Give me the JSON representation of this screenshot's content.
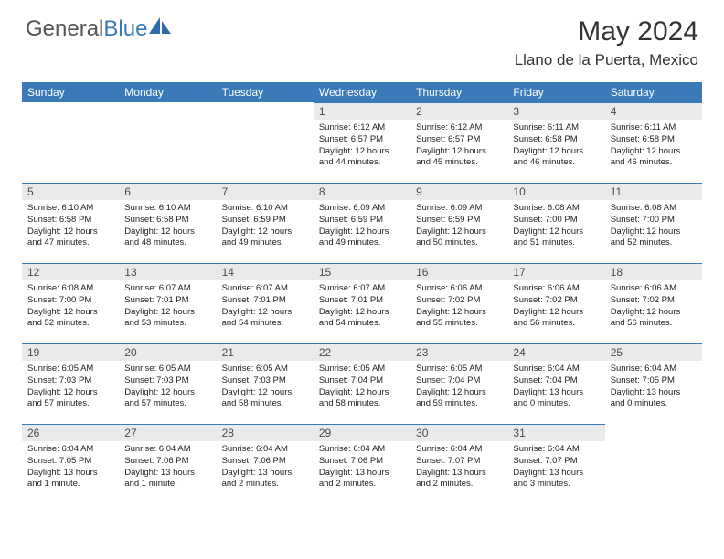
{
  "brand": {
    "part1": "General",
    "part2": "Blue"
  },
  "title": "May 2024",
  "location": "Llano de la Puerta, Mexico",
  "colors": {
    "header_bg": "#3a7ab8",
    "daynum_bg": "#e8eaec",
    "text": "#222222",
    "title_text": "#333333"
  },
  "weekdays": [
    "Sunday",
    "Monday",
    "Tuesday",
    "Wednesday",
    "Thursday",
    "Friday",
    "Saturday"
  ],
  "weeks": [
    [
      null,
      null,
      null,
      {
        "n": "1",
        "sr": "6:12 AM",
        "ss": "6:57 PM",
        "dl": "12 hours and 44 minutes."
      },
      {
        "n": "2",
        "sr": "6:12 AM",
        "ss": "6:57 PM",
        "dl": "12 hours and 45 minutes."
      },
      {
        "n": "3",
        "sr": "6:11 AM",
        "ss": "6:58 PM",
        "dl": "12 hours and 46 minutes."
      },
      {
        "n": "4",
        "sr": "6:11 AM",
        "ss": "6:58 PM",
        "dl": "12 hours and 46 minutes."
      }
    ],
    [
      {
        "n": "5",
        "sr": "6:10 AM",
        "ss": "6:58 PM",
        "dl": "12 hours and 47 minutes."
      },
      {
        "n": "6",
        "sr": "6:10 AM",
        "ss": "6:58 PM",
        "dl": "12 hours and 48 minutes."
      },
      {
        "n": "7",
        "sr": "6:10 AM",
        "ss": "6:59 PM",
        "dl": "12 hours and 49 minutes."
      },
      {
        "n": "8",
        "sr": "6:09 AM",
        "ss": "6:59 PM",
        "dl": "12 hours and 49 minutes."
      },
      {
        "n": "9",
        "sr": "6:09 AM",
        "ss": "6:59 PM",
        "dl": "12 hours and 50 minutes."
      },
      {
        "n": "10",
        "sr": "6:08 AM",
        "ss": "7:00 PM",
        "dl": "12 hours and 51 minutes."
      },
      {
        "n": "11",
        "sr": "6:08 AM",
        "ss": "7:00 PM",
        "dl": "12 hours and 52 minutes."
      }
    ],
    [
      {
        "n": "12",
        "sr": "6:08 AM",
        "ss": "7:00 PM",
        "dl": "12 hours and 52 minutes."
      },
      {
        "n": "13",
        "sr": "6:07 AM",
        "ss": "7:01 PM",
        "dl": "12 hours and 53 minutes."
      },
      {
        "n": "14",
        "sr": "6:07 AM",
        "ss": "7:01 PM",
        "dl": "12 hours and 54 minutes."
      },
      {
        "n": "15",
        "sr": "6:07 AM",
        "ss": "7:01 PM",
        "dl": "12 hours and 54 minutes."
      },
      {
        "n": "16",
        "sr": "6:06 AM",
        "ss": "7:02 PM",
        "dl": "12 hours and 55 minutes."
      },
      {
        "n": "17",
        "sr": "6:06 AM",
        "ss": "7:02 PM",
        "dl": "12 hours and 56 minutes."
      },
      {
        "n": "18",
        "sr": "6:06 AM",
        "ss": "7:02 PM",
        "dl": "12 hours and 56 minutes."
      }
    ],
    [
      {
        "n": "19",
        "sr": "6:05 AM",
        "ss": "7:03 PM",
        "dl": "12 hours and 57 minutes."
      },
      {
        "n": "20",
        "sr": "6:05 AM",
        "ss": "7:03 PM",
        "dl": "12 hours and 57 minutes."
      },
      {
        "n": "21",
        "sr": "6:05 AM",
        "ss": "7:03 PM",
        "dl": "12 hours and 58 minutes."
      },
      {
        "n": "22",
        "sr": "6:05 AM",
        "ss": "7:04 PM",
        "dl": "12 hours and 58 minutes."
      },
      {
        "n": "23",
        "sr": "6:05 AM",
        "ss": "7:04 PM",
        "dl": "12 hours and 59 minutes."
      },
      {
        "n": "24",
        "sr": "6:04 AM",
        "ss": "7:04 PM",
        "dl": "13 hours and 0 minutes."
      },
      {
        "n": "25",
        "sr": "6:04 AM",
        "ss": "7:05 PM",
        "dl": "13 hours and 0 minutes."
      }
    ],
    [
      {
        "n": "26",
        "sr": "6:04 AM",
        "ss": "7:05 PM",
        "dl": "13 hours and 1 minute."
      },
      {
        "n": "27",
        "sr": "6:04 AM",
        "ss": "7:06 PM",
        "dl": "13 hours and 1 minute."
      },
      {
        "n": "28",
        "sr": "6:04 AM",
        "ss": "7:06 PM",
        "dl": "13 hours and 2 minutes."
      },
      {
        "n": "29",
        "sr": "6:04 AM",
        "ss": "7:06 PM",
        "dl": "13 hours and 2 minutes."
      },
      {
        "n": "30",
        "sr": "6:04 AM",
        "ss": "7:07 PM",
        "dl": "13 hours and 2 minutes."
      },
      {
        "n": "31",
        "sr": "6:04 AM",
        "ss": "7:07 PM",
        "dl": "13 hours and 3 minutes."
      },
      null
    ]
  ],
  "labels": {
    "sunrise": "Sunrise:",
    "sunset": "Sunset:",
    "daylight": "Daylight:"
  }
}
